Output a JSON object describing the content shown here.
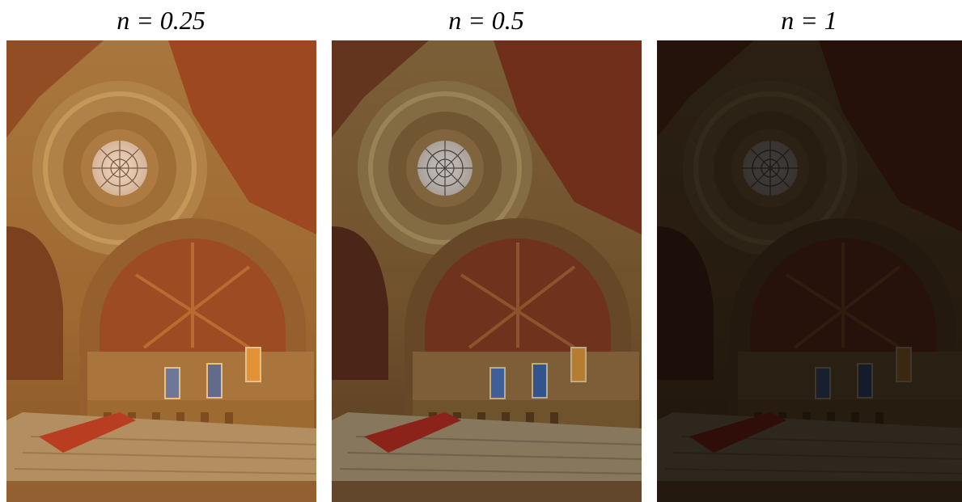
{
  "panels": [
    {
      "label": "n = 0.25"
    },
    {
      "label": "n = 0.5"
    },
    {
      "label": "n = 1"
    }
  ]
}
